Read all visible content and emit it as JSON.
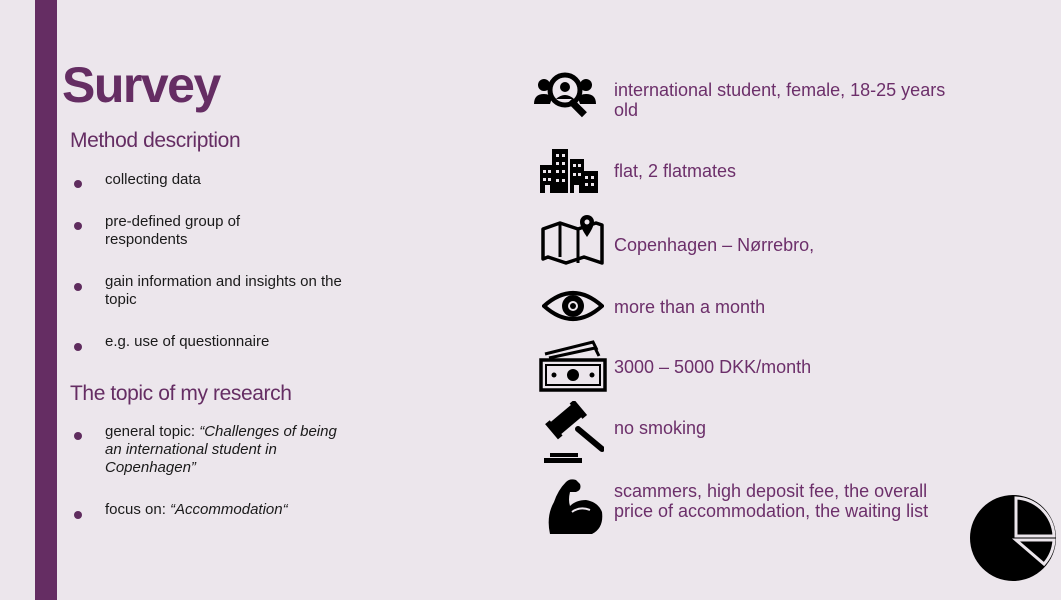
{
  "slide": {
    "title": "Survey",
    "method": {
      "heading": "Method description",
      "bullets": [
        "collecting data",
        "pre-defined group of respondents",
        "gain information and insights on the topic",
        "e.g. use of questionnaire"
      ]
    },
    "topic": {
      "heading": "The topic of my research",
      "general_prefix": "general topic: ",
      "general_quote": "“Challenges of being an international student in Copenhagen”",
      "focus_prefix": "focus on: ",
      "focus_quote": "“Accommodation“"
    },
    "profile": [
      {
        "icon": "people-search-icon",
        "text": "international student, female, 18-25 years old"
      },
      {
        "icon": "city-buildings-icon",
        "text": "flat, 2 flatmates"
      },
      {
        "icon": "map-pin-icon",
        "text": "Copenhagen – Nørrebro,"
      },
      {
        "icon": "eye-icon",
        "text": "more than a month"
      },
      {
        "icon": "money-icon",
        "text": "3000 – 5000 DKK/month"
      },
      {
        "icon": "gavel-icon",
        "text": "no smoking"
      },
      {
        "icon": "flexed-arm-icon",
        "text": "scammers, high deposit fee, the overall price of accommodation, the waiting list"
      }
    ],
    "colors": {
      "accent": "#652d63",
      "background": "#ece6ec",
      "text_purple": "#6c2f6a"
    },
    "decor_icon": "pie-chart-icon"
  }
}
